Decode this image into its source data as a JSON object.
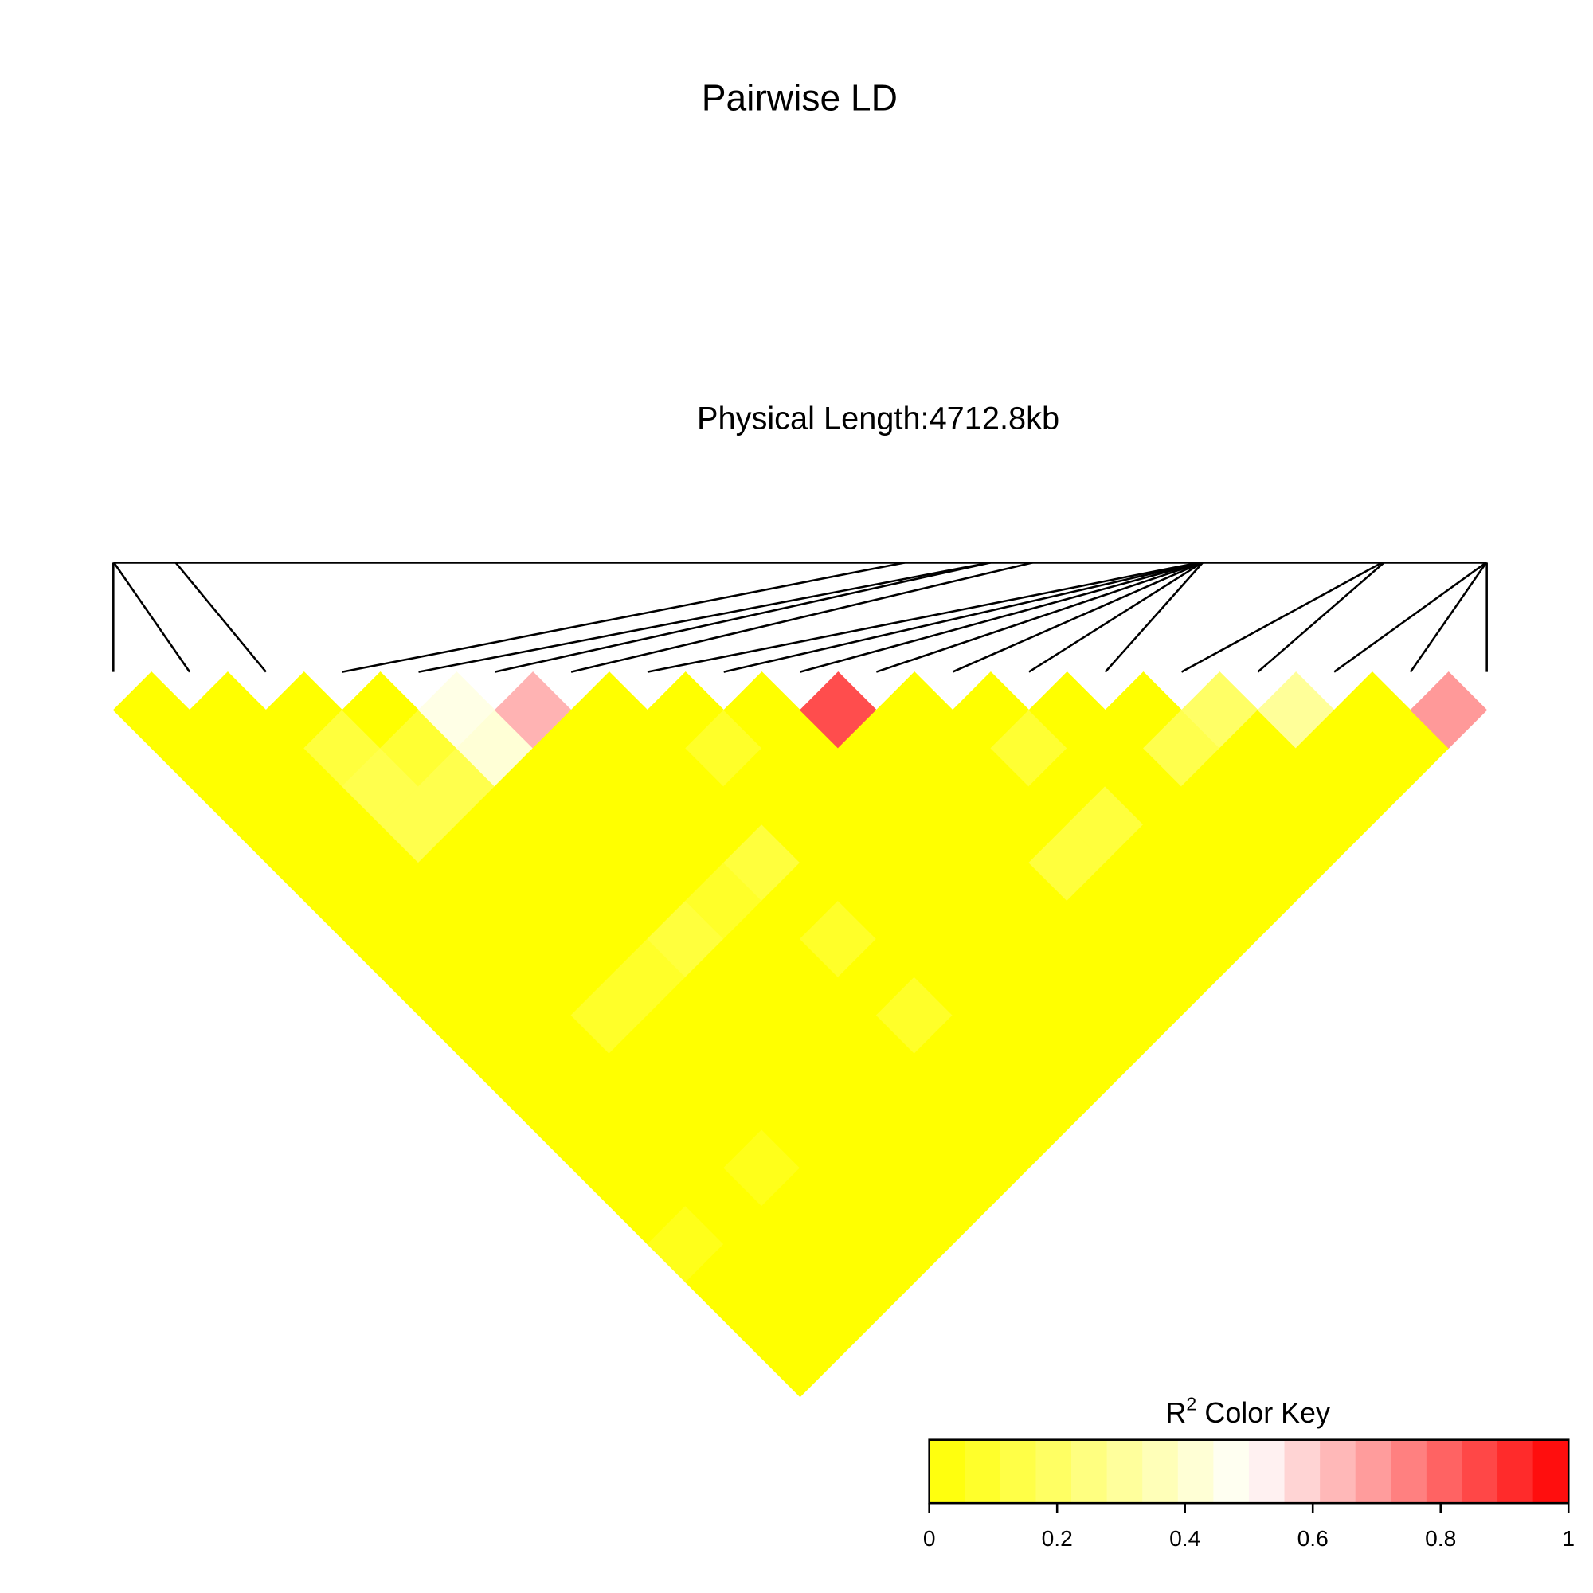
{
  "chart_data": {
    "type": "ld-heatmap",
    "title": "Pairwise LD",
    "subtitle": "Physical Length:4712.8kb",
    "positions_kb": [
      0,
      2,
      214,
      2716,
      3007,
      3010,
      3154,
      3725,
      3728,
      3730,
      3732,
      3734,
      3736,
      3738,
      4353,
      4360,
      4710,
      4711,
      4712.8
    ],
    "r2": [
      [
        0,
        0,
        0,
        0,
        0,
        0,
        0,
        0,
        0,
        0,
        0,
        0,
        0,
        0,
        0.05,
        0,
        0,
        0
      ],
      [
        0,
        0,
        0,
        0,
        0,
        0,
        0,
        0,
        0,
        0,
        0,
        0,
        0,
        0,
        0,
        0,
        0
      ],
      [
        0,
        0.12,
        0.15,
        0.15,
        0,
        0,
        0,
        0,
        0.08,
        0,
        0,
        0,
        0.05,
        0,
        0,
        0
      ],
      [
        0,
        0.1,
        0.15,
        0,
        0,
        0,
        0,
        0.08,
        0,
        0,
        0,
        0,
        0,
        0,
        0
      ],
      [
        0.45,
        0.42,
        0,
        0,
        0,
        0,
        0.12,
        0,
        0,
        0,
        0,
        0,
        0,
        0
      ],
      [
        0.65,
        0,
        0,
        0,
        0,
        0.08,
        0,
        0,
        0,
        0,
        0,
        0,
        0
      ],
      [
        0,
        0,
        0,
        0,
        0.12,
        0,
        0.08,
        0,
        0.08,
        0,
        0,
        0
      ],
      [
        0,
        0.08,
        0,
        0,
        0,
        0,
        0,
        0,
        0,
        0,
        0
      ],
      [
        0,
        0,
        0,
        0,
        0,
        0,
        0,
        0,
        0,
        0
      ],
      [
        0.85,
        0,
        0,
        0,
        0,
        0,
        0,
        0,
        0
      ],
      [
        0,
        0,
        0,
        0,
        0.12,
        0,
        0,
        0
      ],
      [
        0,
        0.1,
        0,
        0.12,
        0,
        0,
        0
      ],
      [
        0,
        0,
        0,
        0,
        0,
        0
      ],
      [
        0,
        0.15,
        0,
        0,
        0
      ],
      [
        0.2,
        0,
        0,
        0
      ],
      [
        0.3,
        0,
        0
      ],
      [
        0,
        0
      ],
      [
        0.7
      ]
    ],
    "colors": [
      "#ffff00",
      "#ffffff",
      "#ff0000"
    ],
    "key_title": "R",
    "key_title_sup": "2",
    "key_title_rest": "Color Key",
    "key_bins": 18,
    "key_lim": [
      0,
      1
    ],
    "key_ticks": [
      0,
      0.2,
      0.4,
      0.6,
      0.8,
      1
    ]
  }
}
